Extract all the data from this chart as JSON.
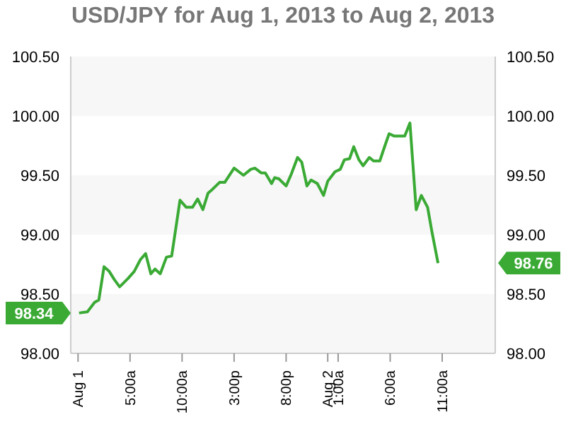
{
  "chart_data": {
    "type": "line",
    "title": "USD/JPY for Aug 1, 2013 to Aug 2, 2013",
    "x": [
      "2013-08-01T00:06",
      "2013-08-01T00:54",
      "2013-08-01T01:36",
      "2013-08-01T02:00",
      "2013-08-01T02:30",
      "2013-08-01T03:00",
      "2013-08-01T03:30",
      "2013-08-01T04:00",
      "2013-08-01T04:48",
      "2013-08-01T05:24",
      "2013-08-01T06:00",
      "2013-08-01T06:30",
      "2013-08-01T07:00",
      "2013-08-01T07:24",
      "2013-08-01T07:54",
      "2013-08-01T08:30",
      "2013-08-01T09:00",
      "2013-08-01T09:48",
      "2013-08-01T10:24",
      "2013-08-01T11:00",
      "2013-08-01T11:30",
      "2013-08-01T12:00",
      "2013-08-01T12:30",
      "2013-08-01T12:54",
      "2013-08-01T13:36",
      "2013-08-01T14:06",
      "2013-08-01T15:00",
      "2013-08-01T15:54",
      "2013-08-01T16:36",
      "2013-08-01T17:00",
      "2013-08-01T17:36",
      "2013-08-01T18:00",
      "2013-08-01T18:36",
      "2013-08-01T18:54",
      "2013-08-01T19:18",
      "2013-08-01T20:00",
      "2013-08-01T20:30",
      "2013-08-01T21:06",
      "2013-08-01T21:30",
      "2013-08-01T22:00",
      "2013-08-01T22:24",
      "2013-08-01T23:00",
      "2013-08-01T23:36",
      "2013-08-02T00:00",
      "2013-08-02T00:42",
      "2013-08-02T01:12",
      "2013-08-02T01:36",
      "2013-08-02T02:06",
      "2013-08-02T02:30",
      "2013-08-02T03:00",
      "2013-08-02T03:24",
      "2013-08-02T04:00",
      "2013-08-02T04:24",
      "2013-08-02T05:00",
      "2013-08-02T05:30",
      "2013-08-02T05:54",
      "2013-08-02T06:24",
      "2013-08-02T07:24",
      "2013-08-02T07:54",
      "2013-08-02T08:30",
      "2013-08-02T09:00",
      "2013-08-02T09:36",
      "2013-08-02T10:00",
      "2013-08-02T10:36"
    ],
    "series": [
      {
        "color": "#3aaa35",
        "values": [
          98.34,
          98.35,
          98.43,
          98.45,
          98.73,
          98.69,
          98.62,
          98.56,
          98.63,
          98.69,
          98.79,
          98.84,
          98.67,
          98.71,
          98.67,
          98.81,
          98.82,
          99.29,
          99.23,
          99.23,
          99.3,
          99.21,
          99.35,
          99.38,
          99.44,
          99.44,
          99.56,
          99.5,
          99.55,
          99.56,
          99.52,
          99.52,
          99.43,
          99.48,
          99.47,
          99.41,
          99.51,
          99.65,
          99.61,
          99.41,
          99.46,
          99.43,
          99.33,
          99.45,
          99.53,
          99.55,
          99.63,
          99.64,
          99.74,
          99.63,
          99.58,
          99.65,
          99.62,
          99.62,
          99.75,
          99.85,
          99.83,
          99.83,
          99.94,
          99.21,
          99.33,
          99.23,
          99.03,
          98.76
        ]
      }
    ],
    "xlim": [
      "2013-07-31T23:18",
      "2013-08-02T16:06"
    ],
    "xticks": [
      {
        "value": "2013-08-01T00:00",
        "label": "Aug 1"
      },
      {
        "value": "2013-08-01T05:00",
        "label": "5:00a"
      },
      {
        "value": "2013-08-01T10:00",
        "label": "10:00a"
      },
      {
        "value": "2013-08-01T15:00",
        "label": "3:00p"
      },
      {
        "value": "2013-08-01T20:00",
        "label": "8:00p"
      },
      {
        "value": "2013-08-02T00:00",
        "label": "Aug 2"
      },
      {
        "value": "2013-08-02T01:00",
        "label": "1:00a"
      },
      {
        "value": "2013-08-02T06:00",
        "label": "6:00a"
      },
      {
        "value": "2013-08-02T11:00",
        "label": "11:00a"
      }
    ],
    "ylim": [
      98,
      100.5
    ],
    "yticks": [
      {
        "value": 98,
        "label": "98.00"
      },
      {
        "value": 98.5,
        "label": "98.50"
      },
      {
        "value": 99,
        "label": "99.00"
      },
      {
        "value": 99.5,
        "label": "99.50"
      },
      {
        "value": 100,
        "label": "100.00"
      },
      {
        "value": 100.5,
        "label": "100.50"
      }
    ],
    "y2lim": [
      98,
      100.5
    ],
    "y2ticks": [
      {
        "value": 98,
        "label": "98.00"
      },
      {
        "value": 98.5,
        "label": "98.50"
      },
      {
        "value": 99,
        "label": "99.00"
      },
      {
        "value": 99.5,
        "label": "99.50"
      },
      {
        "value": 100,
        "label": "100.00"
      },
      {
        "value": 100.5,
        "label": "100.50"
      }
    ],
    "bands": [
      {
        "axis": "y",
        "from": 98,
        "to": 98.5,
        "color": "#f7f7f7"
      },
      {
        "axis": "y",
        "from": 99,
        "to": 99.5,
        "color": "#f7f7f7"
      },
      {
        "axis": "y",
        "from": 100,
        "to": 100.5,
        "color": "#f7f7f7"
      }
    ],
    "annotations": [
      "98.34",
      "98.76"
    ],
    "marker": "none",
    "line_style": "solid"
  }
}
